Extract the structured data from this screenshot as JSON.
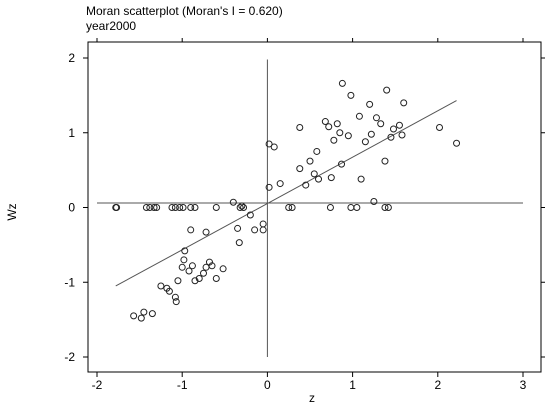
{
  "chart_data": {
    "type": "scatter",
    "title": "Moran scatterplot (Moran's I = 0.620)",
    "subtitle": "year2000",
    "xlabel": "z",
    "ylabel": "Wz",
    "xlim": [
      -2,
      3
    ],
    "ylim": [
      -2,
      2
    ],
    "x_ticks": [
      -2,
      -1,
      0,
      1,
      2,
      3
    ],
    "y_ticks": [
      -2,
      -1,
      0,
      1,
      2
    ],
    "reference_lines": {
      "x": 0,
      "y": 0.06
    },
    "fit_line": {
      "x": [
        -1.78,
        2.22
      ],
      "y": [
        -1.05,
        1.43
      ]
    },
    "points": [
      [
        -1.78,
        0.0
      ],
      [
        -1.77,
        0.0
      ],
      [
        -1.42,
        0.0
      ],
      [
        -1.38,
        0.0
      ],
      [
        -1.33,
        0.0
      ],
      [
        -1.3,
        0.0
      ],
      [
        -1.12,
        0.0
      ],
      [
        -1.08,
        0.0
      ],
      [
        -1.03,
        0.0
      ],
      [
        -0.99,
        0.0
      ],
      [
        -0.9,
        0.0
      ],
      [
        -0.85,
        0.0
      ],
      [
        -0.6,
        0.0
      ],
      [
        -0.32,
        0.0
      ],
      [
        -0.28,
        0.0
      ],
      [
        0.25,
        0.0
      ],
      [
        0.29,
        0.0
      ],
      [
        0.74,
        0.0
      ],
      [
        0.98,
        0.0
      ],
      [
        1.05,
        0.0
      ],
      [
        1.38,
        0.0
      ],
      [
        1.42,
        0.0
      ],
      [
        -1.57,
        -1.45
      ],
      [
        -1.48,
        -1.48
      ],
      [
        -1.45,
        -1.4
      ],
      [
        -1.35,
        -1.42
      ],
      [
        -1.25,
        -1.05
      ],
      [
        -1.18,
        -1.08
      ],
      [
        -1.15,
        -1.12
      ],
      [
        -1.08,
        -1.2
      ],
      [
        -1.07,
        -1.26
      ],
      [
        -1.05,
        -0.98
      ],
      [
        -1.0,
        -0.8
      ],
      [
        -0.98,
        -0.7
      ],
      [
        -0.97,
        -0.58
      ],
      [
        -0.92,
        -0.85
      ],
      [
        -0.88,
        -0.78
      ],
      [
        -0.85,
        -0.98
      ],
      [
        -0.8,
        -0.95
      ],
      [
        -0.75,
        -0.88
      ],
      [
        -0.72,
        -0.8
      ],
      [
        -0.68,
        -0.73
      ],
      [
        -0.65,
        -0.78
      ],
      [
        -0.6,
        -0.95
      ],
      [
        -0.52,
        -0.82
      ],
      [
        -0.9,
        -0.3
      ],
      [
        -0.72,
        -0.33
      ],
      [
        -0.35,
        -0.28
      ],
      [
        -0.33,
        -0.47
      ],
      [
        -0.2,
        -0.1
      ],
      [
        -0.15,
        -0.3
      ],
      [
        -0.05,
        -0.3
      ],
      [
        -0.05,
        -0.22
      ],
      [
        -0.3,
        0.02
      ],
      [
        -0.4,
        0.07
      ],
      [
        0.02,
        0.85
      ],
      [
        0.08,
        0.81
      ],
      [
        0.02,
        0.27
      ],
      [
        0.15,
        0.32
      ],
      [
        0.38,
        0.52
      ],
      [
        0.45,
        0.3
      ],
      [
        0.5,
        0.62
      ],
      [
        0.55,
        0.45
      ],
      [
        0.58,
        0.75
      ],
      [
        0.6,
        0.38
      ],
      [
        0.68,
        1.15
      ],
      [
        0.72,
        1.08
      ],
      [
        0.75,
        0.4
      ],
      [
        0.78,
        0.9
      ],
      [
        0.82,
        1.12
      ],
      [
        0.85,
        1.0
      ],
      [
        0.87,
        0.58
      ],
      [
        0.88,
        1.66
      ],
      [
        0.95,
        0.96
      ],
      [
        0.98,
        1.5
      ],
      [
        1.08,
        1.22
      ],
      [
        1.1,
        0.38
      ],
      [
        1.15,
        0.88
      ],
      [
        1.2,
        1.38
      ],
      [
        1.28,
        1.2
      ],
      [
        1.33,
        1.12
      ],
      [
        1.38,
        0.62
      ],
      [
        1.4,
        1.57
      ],
      [
        1.45,
        0.94
      ],
      [
        1.48,
        1.05
      ],
      [
        1.55,
        1.1
      ],
      [
        1.58,
        0.97
      ],
      [
        1.6,
        1.4
      ],
      [
        0.38,
        1.07
      ],
      [
        2.02,
        1.07
      ],
      [
        2.22,
        0.86
      ],
      [
        1.22,
        0.98
      ],
      [
        1.25,
        0.08
      ]
    ]
  }
}
